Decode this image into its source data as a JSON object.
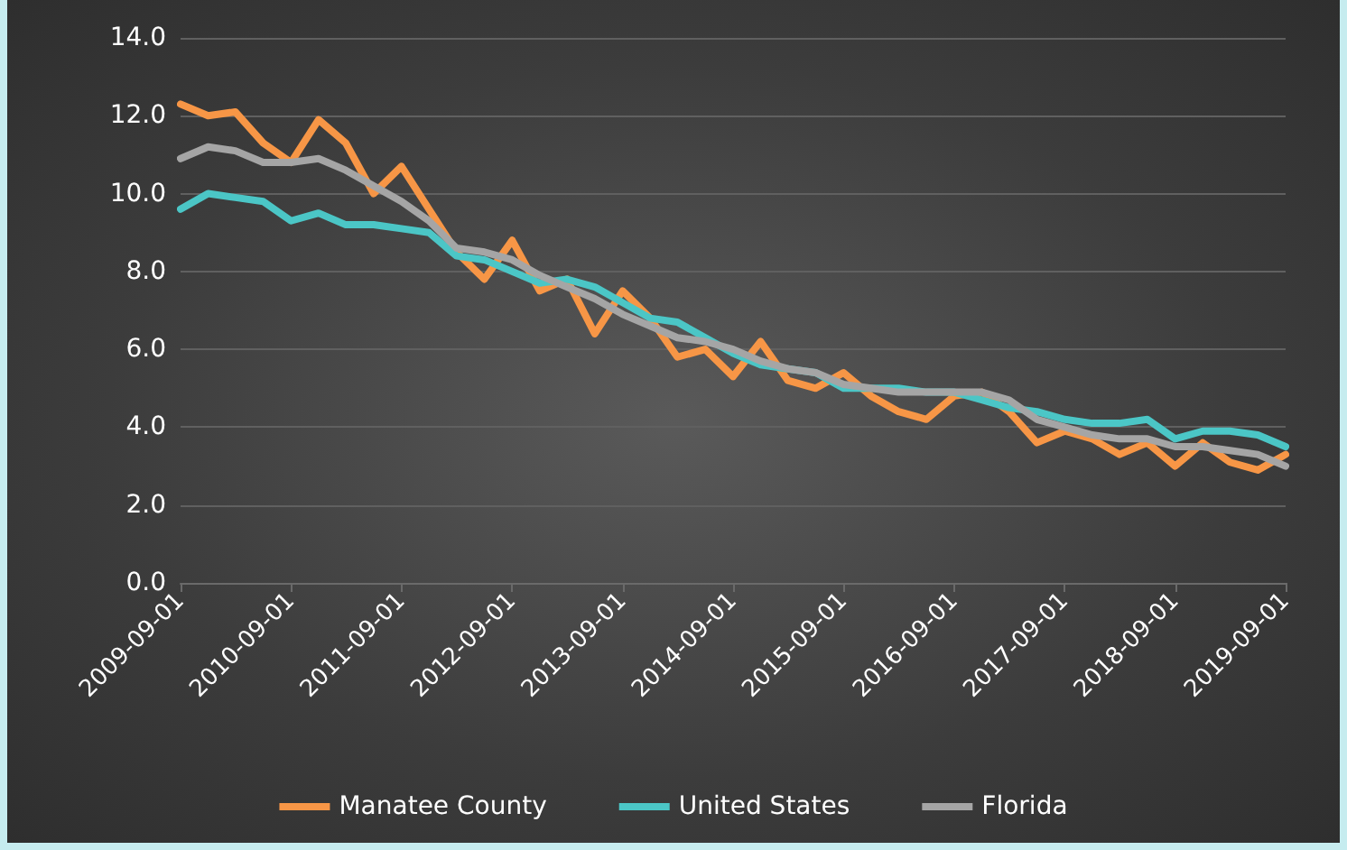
{
  "chart_data": {
    "type": "line",
    "x": [
      "2009-09-01",
      "2009-12-01",
      "2010-03-01",
      "2010-06-01",
      "2010-09-01",
      "2010-12-01",
      "2011-03-01",
      "2011-06-01",
      "2011-09-01",
      "2011-12-01",
      "2012-03-01",
      "2012-06-01",
      "2012-09-01",
      "2012-12-01",
      "2013-03-01",
      "2013-06-01",
      "2013-09-01",
      "2013-12-01",
      "2014-03-01",
      "2014-06-01",
      "2014-09-01",
      "2014-12-01",
      "2015-03-01",
      "2015-06-01",
      "2015-09-01",
      "2015-12-01",
      "2016-03-01",
      "2016-06-01",
      "2016-09-01",
      "2016-12-01",
      "2017-03-01",
      "2017-06-01",
      "2017-09-01",
      "2017-12-01",
      "2018-03-01",
      "2018-06-01",
      "2018-09-01",
      "2018-12-01",
      "2019-03-01",
      "2019-06-01",
      "2019-09-01"
    ],
    "series": [
      {
        "name": "Manatee County",
        "color": "#f79646",
        "values": [
          12.3,
          12.0,
          12.1,
          11.3,
          10.8,
          11.9,
          11.3,
          10.0,
          10.7,
          9.6,
          8.5,
          7.8,
          8.8,
          7.5,
          7.8,
          6.4,
          7.5,
          6.8,
          5.8,
          6.0,
          5.3,
          6.2,
          5.2,
          5.0,
          5.4,
          4.8,
          4.4,
          4.2,
          4.8,
          4.9,
          4.4,
          3.6,
          3.9,
          3.7,
          3.3,
          3.6,
          3.0,
          3.6,
          3.1,
          2.9,
          3.3
        ]
      },
      {
        "name": "United States",
        "color": "#4bc6c6",
        "values": [
          9.6,
          10.0,
          9.9,
          9.8,
          9.3,
          9.5,
          9.2,
          9.2,
          9.1,
          9.0,
          8.4,
          8.3,
          8.0,
          7.7,
          7.8,
          7.6,
          7.2,
          6.8,
          6.7,
          6.3,
          5.9,
          5.6,
          5.5,
          5.4,
          5.0,
          5.0,
          5.0,
          4.9,
          4.9,
          4.7,
          4.5,
          4.4,
          4.2,
          4.1,
          4.1,
          4.2,
          3.7,
          3.9,
          3.9,
          3.8,
          3.5
        ]
      },
      {
        "name": "Florida",
        "color": "#a5a5a5",
        "values": [
          10.9,
          11.2,
          11.1,
          10.8,
          10.8,
          10.9,
          10.6,
          10.2,
          9.8,
          9.3,
          8.6,
          8.5,
          8.3,
          7.9,
          7.6,
          7.3,
          6.9,
          6.6,
          6.3,
          6.2,
          6.0,
          5.7,
          5.5,
          5.4,
          5.1,
          5.0,
          4.9,
          4.9,
          4.9,
          4.9,
          4.7,
          4.2,
          4.0,
          3.8,
          3.7,
          3.7,
          3.5,
          3.5,
          3.4,
          3.3,
          3.0
        ]
      }
    ],
    "xlim": [
      "2009-09-01",
      "2019-09-01"
    ],
    "xticks": [
      "2009-09-01",
      "2010-09-01",
      "2011-09-01",
      "2012-09-01",
      "2013-09-01",
      "2014-09-01",
      "2015-09-01",
      "2016-09-01",
      "2017-09-01",
      "2018-09-01",
      "2019-09-01"
    ],
    "ylim": [
      0,
      14
    ],
    "yticks": [
      {
        "value": 0,
        "label": "0.0"
      },
      {
        "value": 2,
        "label": "2.0"
      },
      {
        "value": 4,
        "label": "4.0"
      },
      {
        "value": 6,
        "label": "6.0"
      },
      {
        "value": 8,
        "label": "8.0"
      },
      {
        "value": 10,
        "label": "10.0"
      },
      {
        "value": 12,
        "label": "12.0"
      },
      {
        "value": 14,
        "label": "14.0"
      }
    ],
    "grid": "y",
    "legend": "bottom",
    "marker": "none",
    "line_style": "solid"
  }
}
